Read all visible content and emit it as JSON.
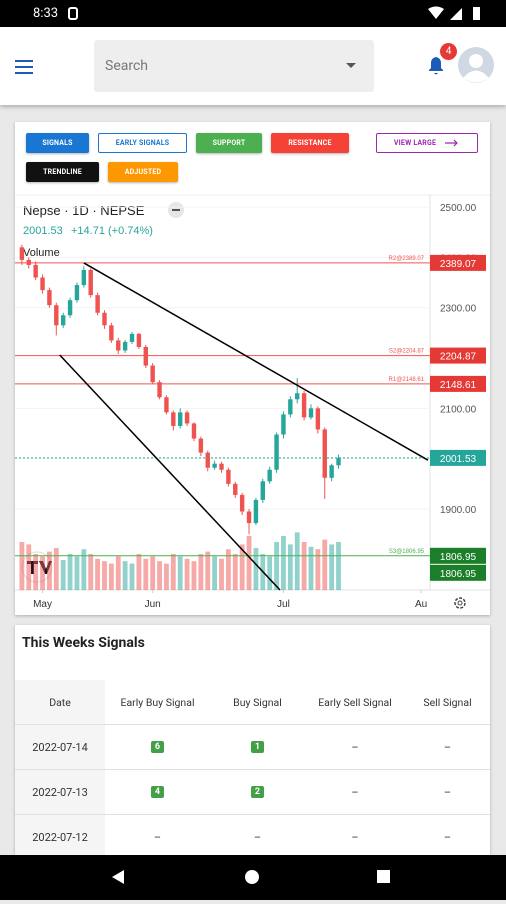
{
  "status_bar": {
    "time": "8:33"
  },
  "app_bar": {
    "search_placeholder": "Search",
    "notification_count": 4
  },
  "buttons": [
    "SIGNALS",
    "EARLY SIGNALS",
    "SUPPORT",
    "RESISTANCE",
    "VIEW LARGE",
    "TRENDLINE",
    "ADJUSTED"
  ],
  "chart_data": {
    "type": "candlestick",
    "title": "Nepse · 1D · NEPSE",
    "last_price": 2001.53,
    "change": "+14.71 (+0.74%)",
    "volume_label": "Volume",
    "up_color": "#26a69a",
    "down_color": "#ef5350",
    "x": [
      0,
      1,
      2,
      3,
      4,
      5,
      6,
      7,
      8,
      9,
      10,
      11,
      12,
      13,
      14,
      15,
      16,
      17,
      18,
      19,
      20,
      21,
      22,
      23,
      24,
      25,
      26,
      27,
      28,
      29,
      30,
      31,
      32,
      33,
      34,
      35,
      36,
      37,
      38,
      39,
      40,
      41,
      42,
      43,
      44,
      45,
      46
    ],
    "open": [
      2420,
      2395,
      2385,
      2360,
      2335,
      2305,
      2265,
      2285,
      2315,
      2345,
      2375,
      2325,
      2290,
      2265,
      2235,
      2215,
      2232,
      2248,
      2222,
      2185,
      2152,
      2122,
      2092,
      2065,
      2092,
      2070,
      2040,
      2012,
      1982,
      1990,
      1978,
      1950,
      1928,
      1895,
      1872,
      1918,
      1955,
      1978,
      2048,
      2088,
      2118,
      2130,
      2082,
      2100,
      2058,
      1962,
      1986.82
    ],
    "high": [
      2425,
      2400,
      2392,
      2366,
      2340,
      2310,
      2290,
      2320,
      2350,
      2382,
      2378,
      2330,
      2295,
      2270,
      2240,
      2236,
      2252,
      2250,
      2226,
      2190,
      2156,
      2126,
      2096,
      2100,
      2096,
      2072,
      2044,
      2016,
      1996,
      1994,
      1982,
      1954,
      1932,
      1900,
      1922,
      1960,
      1984,
      2052,
      2094,
      2124,
      2160,
      2135,
      2108,
      2104,
      2062,
      1990,
      2008
    ],
    "low": [
      2385,
      2378,
      2355,
      2328,
      2300,
      2245,
      2260,
      2280,
      2310,
      2340,
      2320,
      2285,
      2258,
      2230,
      2208,
      2210,
      2228,
      2218,
      2180,
      2148,
      2118,
      2088,
      2056,
      2060,
      2065,
      2035,
      2005,
      1975,
      1978,
      1972,
      1945,
      1922,
      1888,
      1850,
      1868,
      1912,
      1950,
      1972,
      2040,
      2082,
      2110,
      2076,
      2078,
      2050,
      1920,
      1955,
      1980
    ],
    "close": [
      2395,
      2385,
      2360,
      2335,
      2305,
      2265,
      2285,
      2315,
      2345,
      2375,
      2325,
      2290,
      2265,
      2235,
      2215,
      2232,
      2248,
      2222,
      2185,
      2152,
      2122,
      2092,
      2065,
      2092,
      2070,
      2040,
      2012,
      1982,
      1990,
      1978,
      1950,
      1928,
      1895,
      1872,
      1918,
      1955,
      1978,
      2048,
      2088,
      2118,
      2130,
      2082,
      2100,
      2058,
      1962,
      1986.82,
      2001.53
    ],
    "volume": [
      40,
      38,
      30,
      28,
      32,
      35,
      25,
      30,
      28,
      34,
      30,
      26,
      24,
      22,
      28,
      24,
      22,
      30,
      26,
      28,
      24,
      22,
      30,
      28,
      26,
      24,
      30,
      32,
      28,
      26,
      34,
      30,
      38,
      45,
      35,
      30,
      28,
      40,
      45,
      38,
      48,
      40,
      36,
      34,
      42,
      38,
      40
    ],
    "vlim": [
      0,
      100
    ],
    "xlim": [
      -1,
      59
    ],
    "xticks": [
      {
        "value": 3,
        "label": "May"
      },
      {
        "value": 19,
        "label": "Jun"
      },
      {
        "value": 38,
        "label": "Jul"
      },
      {
        "value": 58,
        "label": "Au"
      }
    ],
    "ylim": [
      1739,
      2524
    ],
    "yticks": [
      {
        "value": 1900,
        "label": "1900.00"
      },
      {
        "value": 2000,
        "label": "2000.00"
      },
      {
        "value": 2100,
        "label": "2100.00"
      },
      {
        "value": 2200,
        "label": "2200.00"
      },
      {
        "value": 2300,
        "label": "2300.00"
      },
      {
        "value": 2400,
        "label": "2400.00"
      },
      {
        "value": 2500,
        "label": "2500.00"
      }
    ],
    "levels": [
      {
        "label": "R2@2389.07",
        "value": 2389.07,
        "color": "#ef5350"
      },
      {
        "label": "S2@2204.87",
        "value": 2204.87,
        "color": "#ef5350"
      },
      {
        "label": "R1@2148.61",
        "value": 2148.61,
        "color": "#ef5350"
      },
      {
        "label": "S3@1806.95",
        "value": 1806.95,
        "color": "#4caf50"
      }
    ],
    "axis_badges": [
      {
        "value": 2389.07,
        "color": "#e53935"
      },
      {
        "value": 2204.87,
        "color": "#e53935"
      },
      {
        "value": 2148.61,
        "color": "#e53935"
      },
      {
        "value": 2001.53,
        "color": "#26a69a"
      },
      {
        "value": 1806.95,
        "color": "#1b7f2a"
      },
      {
        "value": 1806.95,
        "color": "#1b7f2a"
      }
    ],
    "trendlines": [
      {
        "points": [
          [
            9,
            2389
          ],
          [
            59,
            1997
          ]
        ]
      },
      {
        "points": [
          [
            5.5,
            2206
          ],
          [
            37.5,
            1739
          ]
        ]
      }
    ]
  },
  "signals_table": {
    "title": "This Weeks Signals",
    "columns": [
      "Date",
      "Early Buy Signal",
      "Buy Signal",
      "Early Sell Signal",
      "Sell Signal"
    ],
    "rows": [
      [
        "2022-07-14",
        6,
        1,
        "–",
        "–"
      ],
      [
        "2022-07-13",
        4,
        2,
        "–",
        "–"
      ],
      [
        "2022-07-12",
        "–",
        "–",
        "–",
        "–"
      ]
    ]
  }
}
